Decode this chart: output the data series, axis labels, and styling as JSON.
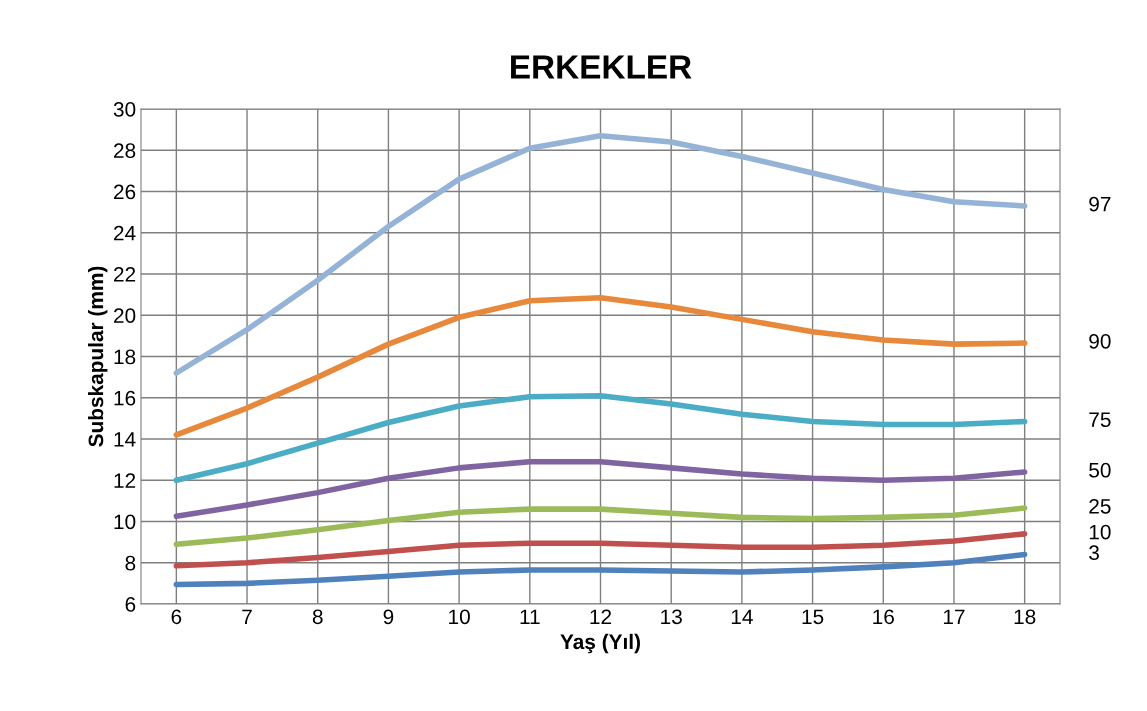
{
  "chart_data": {
    "type": "line",
    "title": "ERKEKLER",
    "xlabel": "Yaş (Yıl)",
    "ylabel": "Subskapular (mm)",
    "categories": [
      "6",
      "7",
      "8",
      "9",
      "10",
      "11",
      "12",
      "13",
      "14",
      "15",
      "16",
      "17",
      "18"
    ],
    "ylim": [
      6,
      30
    ],
    "yticks": [
      6,
      8,
      10,
      12,
      14,
      16,
      18,
      20,
      22,
      24,
      26,
      28,
      30
    ],
    "grid": true,
    "legend": false,
    "marker": "none",
    "line_style": "solid",
    "series": [
      {
        "name": "97",
        "color": "#95b3d7",
        "values": [
          17.2,
          19.3,
          21.7,
          24.3,
          26.6,
          28.1,
          28.7,
          28.4,
          27.7,
          26.9,
          26.1,
          25.5,
          25.3
        ]
      },
      {
        "name": "90",
        "color": "#e8883a",
        "values": [
          14.2,
          15.5,
          17.0,
          18.6,
          19.9,
          20.7,
          20.85,
          20.4,
          19.8,
          19.2,
          18.8,
          18.6,
          18.65
        ]
      },
      {
        "name": "75",
        "color": "#4bacc6",
        "values": [
          12.0,
          12.8,
          13.8,
          14.8,
          15.6,
          16.05,
          16.1,
          15.7,
          15.2,
          14.85,
          14.7,
          14.7,
          14.85
        ]
      },
      {
        "name": "50",
        "color": "#8064a2",
        "values": [
          10.25,
          10.8,
          11.4,
          12.1,
          12.6,
          12.9,
          12.9,
          12.6,
          12.3,
          12.1,
          12.0,
          12.1,
          12.4
        ]
      },
      {
        "name": "25",
        "color": "#9bbb59",
        "values": [
          8.9,
          9.2,
          9.6,
          10.05,
          10.45,
          10.6,
          10.6,
          10.4,
          10.2,
          10.15,
          10.2,
          10.3,
          10.65
        ]
      },
      {
        "name": "10",
        "color": "#c0504d",
        "values": [
          7.85,
          8.0,
          8.25,
          8.55,
          8.85,
          8.95,
          8.95,
          8.85,
          8.75,
          8.75,
          8.85,
          9.05,
          9.4
        ]
      },
      {
        "name": "3",
        "color": "#4f81bd",
        "values": [
          6.95,
          7.0,
          7.15,
          7.35,
          7.55,
          7.65,
          7.65,
          7.6,
          7.55,
          7.65,
          7.8,
          8.0,
          8.4
        ]
      }
    ]
  }
}
